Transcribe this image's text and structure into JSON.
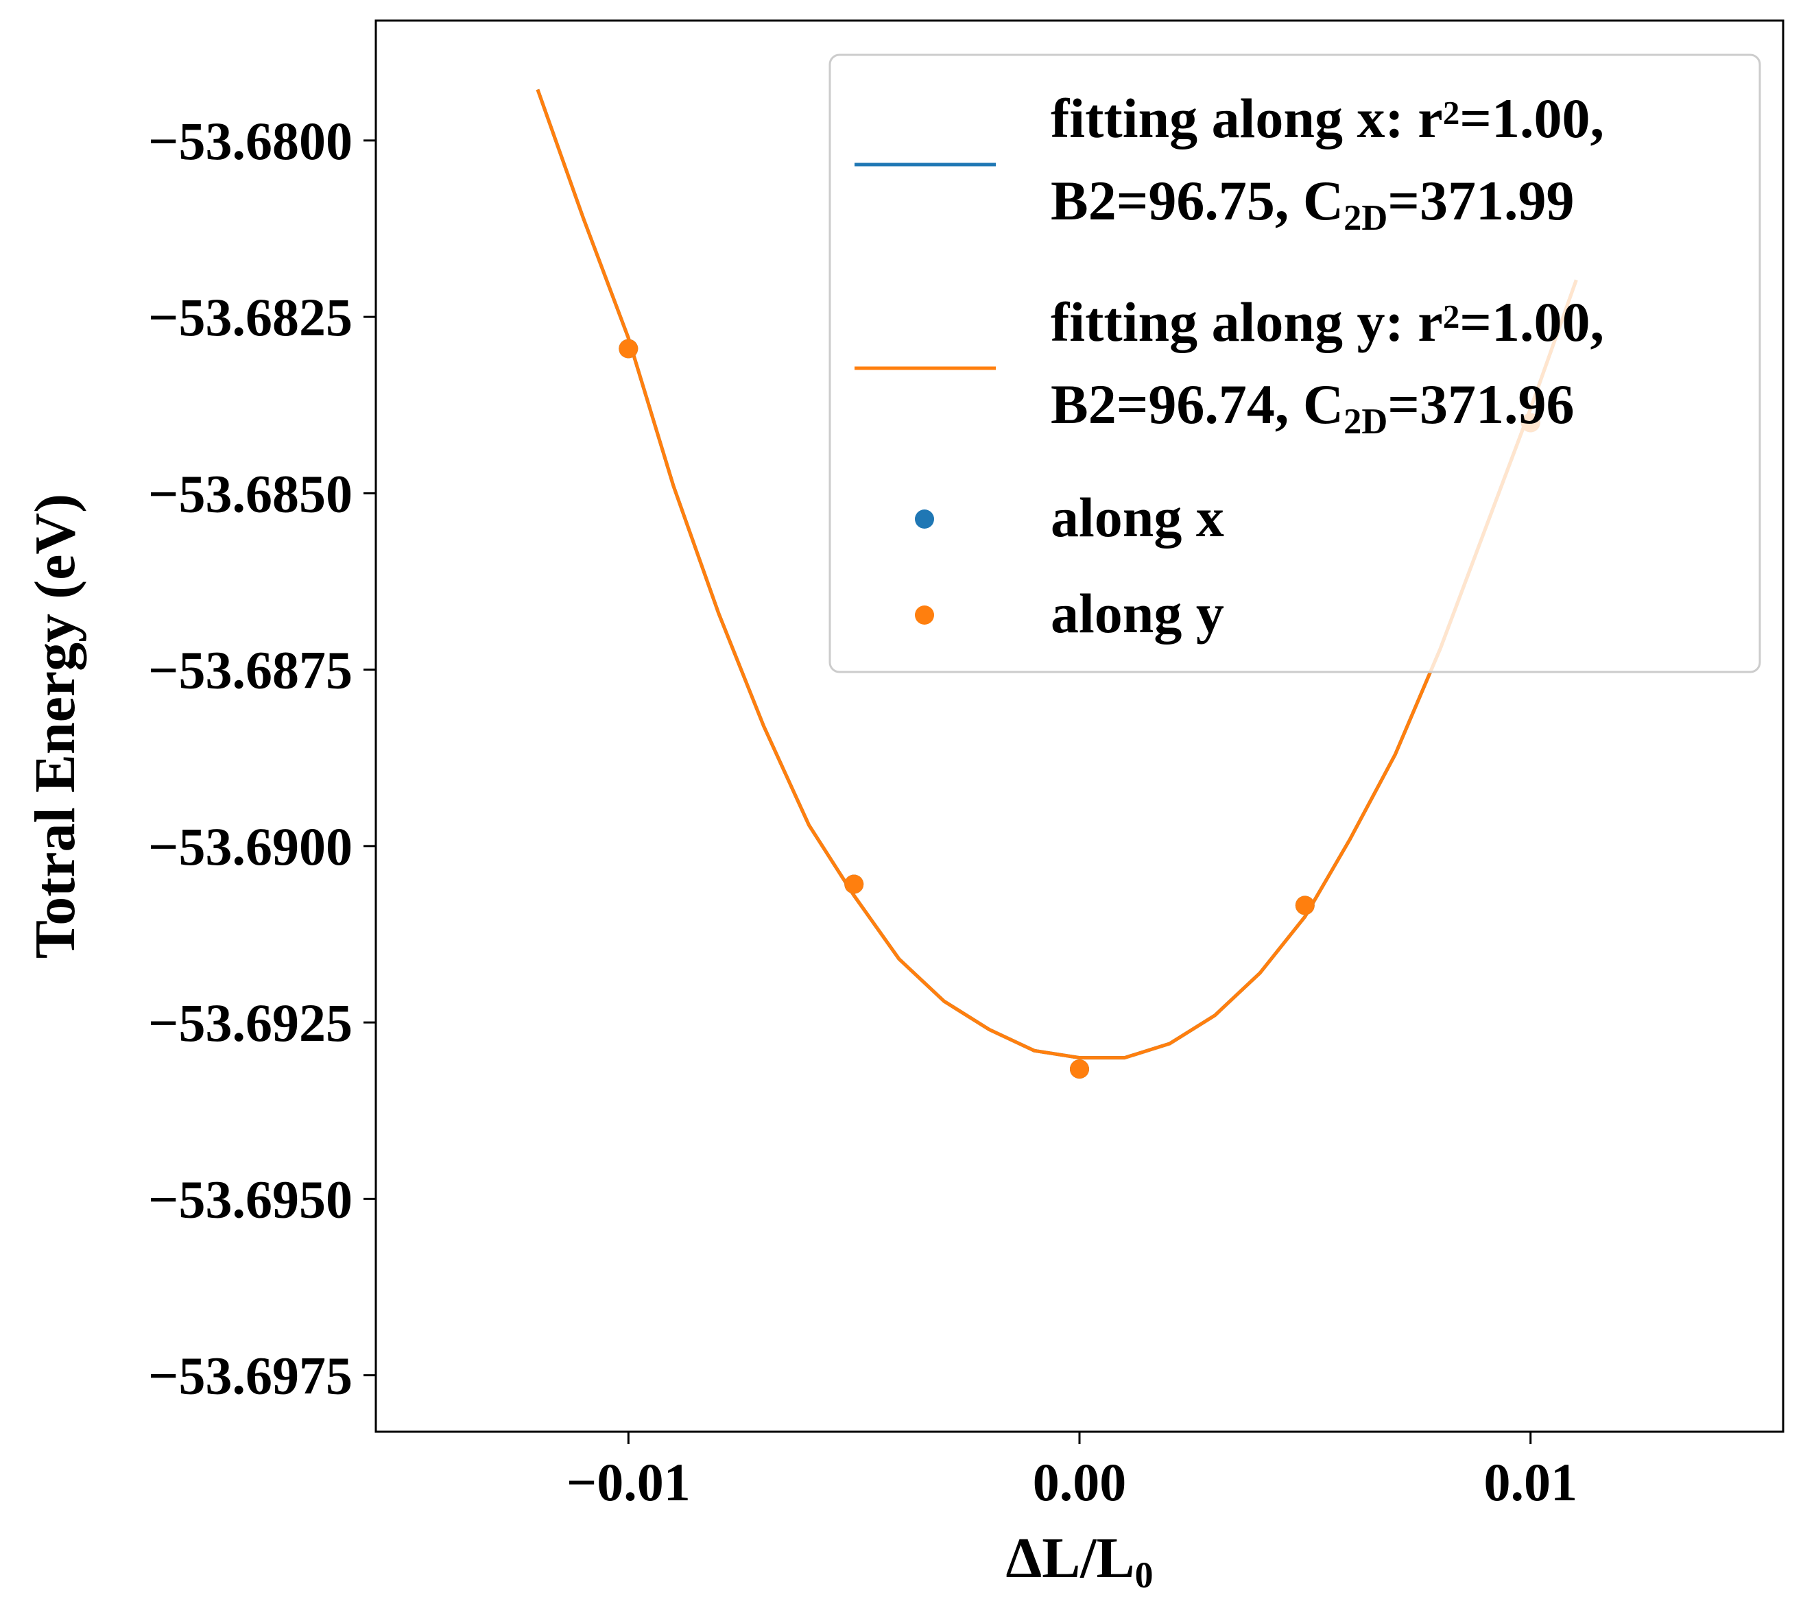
{
  "chart_data": {
    "type": "line",
    "title": "",
    "xlabel": {
      "main": "ΔL/L",
      "sub": "0"
    },
    "ylabel": "Totral Energy (eV)",
    "xlim": [
      -0.0156,
      0.0156
    ],
    "ylim": [
      -53.6983,
      -53.6783
    ],
    "xticks": [
      -0.01,
      0.0,
      0.01
    ],
    "xtick_labels": [
      "−0.01",
      "0.00",
      "0.01"
    ],
    "yticks": [
      -53.68,
      -53.6825,
      -53.685,
      -53.6875,
      -53.69,
      -53.6925,
      -53.695,
      -53.6975
    ],
    "ytick_labels": [
      "−53.6800",
      "−53.6825",
      "−53.6850",
      "−53.6875",
      "−53.6900",
      "−53.6925",
      "−53.6950",
      "−53.6975"
    ],
    "grid": false,
    "legend_position": "top-right",
    "series": [
      {
        "kind": "line",
        "color": "#1f77b4",
        "legend_lines": [
          [
            {
              "t": "fitting along x: r"
            },
            {
              "t": "2",
              "sup": true
            },
            {
              "t": "=1.00,"
            }
          ],
          [
            {
              "t": "B2=96.75, C"
            },
            {
              "t": "2D",
              "sub": true
            },
            {
              "t": "=371.99"
            }
          ]
        ],
        "x": [
          -0.012,
          -0.011,
          -0.01,
          -0.009,
          -0.008,
          -0.007,
          -0.006,
          -0.005,
          -0.004,
          -0.003,
          -0.002,
          -0.001,
          0.0,
          0.001,
          0.002,
          0.003,
          0.004,
          0.005,
          0.006,
          0.007,
          0.008,
          0.009,
          0.01,
          0.011
        ],
        "y": [
          -53.6793,
          -53.6811,
          -53.6828,
          -53.6849,
          -53.6867,
          -53.6883,
          -53.6897,
          -53.6907,
          -53.6916,
          -53.6922,
          -53.6926,
          -53.6929,
          -53.693,
          -53.693,
          -53.6928,
          -53.6924,
          -53.6918,
          -53.691,
          -53.6899,
          -53.6887,
          -53.6872,
          -53.6855,
          -53.6838,
          -53.682
        ]
      },
      {
        "kind": "line",
        "color": "#ff7f0e",
        "legend_lines": [
          [
            {
              "t": "fitting along y: r"
            },
            {
              "t": "2",
              "sup": true
            },
            {
              "t": "=1.00,"
            }
          ],
          [
            {
              "t": "B2=96.74, C"
            },
            {
              "t": "2D",
              "sub": true
            },
            {
              "t": "=371.96"
            }
          ]
        ],
        "x": [
          -0.012,
          -0.011,
          -0.01,
          -0.009,
          -0.008,
          -0.007,
          -0.006,
          -0.005,
          -0.004,
          -0.003,
          -0.002,
          -0.001,
          0.0,
          0.001,
          0.002,
          0.003,
          0.004,
          0.005,
          0.006,
          0.007,
          0.008,
          0.009,
          0.01,
          0.011
        ],
        "y": [
          -53.6793,
          -53.6811,
          -53.6828,
          -53.6849,
          -53.6867,
          -53.6883,
          -53.6897,
          -53.6907,
          -53.6916,
          -53.6922,
          -53.6926,
          -53.6929,
          -53.693,
          -53.693,
          -53.6928,
          -53.6924,
          -53.6918,
          -53.691,
          -53.6899,
          -53.6887,
          -53.6872,
          -53.6855,
          -53.6838,
          -53.682
        ]
      },
      {
        "kind": "scatter",
        "color": "#1f77b4",
        "legend_lines": [
          [
            {
              "t": "along x"
            }
          ]
        ],
        "x": [
          -0.01,
          -0.005,
          0.0,
          0.005,
          0.01
        ],
        "y": [
          -53.68295,
          -53.69054,
          -53.69316,
          -53.69084,
          -53.684
        ]
      },
      {
        "kind": "scatter",
        "color": "#ff7f0e",
        "legend_lines": [
          [
            {
              "t": "along y"
            }
          ]
        ],
        "x": [
          -0.01,
          -0.005,
          0.0,
          0.005,
          0.01
        ],
        "y": [
          -53.68295,
          -53.69054,
          -53.69316,
          -53.69084,
          -53.684
        ]
      }
    ]
  }
}
